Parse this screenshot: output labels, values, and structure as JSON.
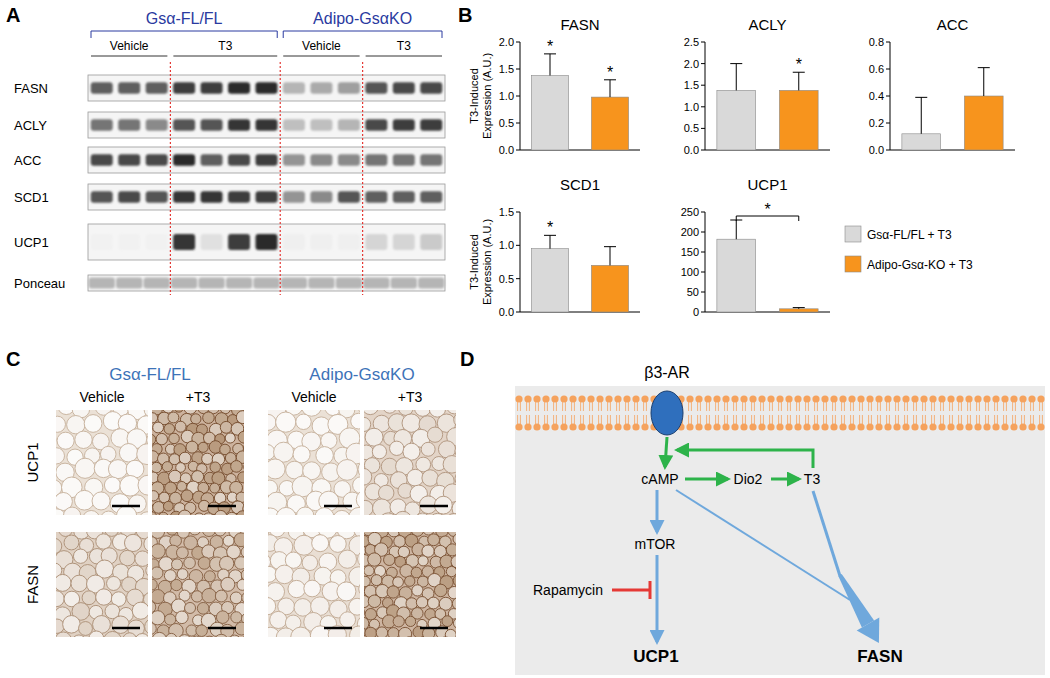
{
  "panel_labels": [
    "A",
    "B",
    "C",
    "D"
  ],
  "blot": {
    "groups": [
      {
        "label": "Gsα-FL/FL",
        "color": "#2a3aa0",
        "treatments": [
          {
            "label": "Vehicle",
            "lanes": 3
          },
          {
            "label": "T3",
            "lanes": 4
          }
        ]
      },
      {
        "label": "Adipo-GsαKO",
        "color": "#2a3aa0",
        "treatments": [
          {
            "label": "Vehicle",
            "lanes": 3
          },
          {
            "label": "T3",
            "lanes": 3
          }
        ]
      }
    ],
    "rows": [
      {
        "label": "FASN",
        "intensity": [
          0.7,
          0.7,
          0.7,
          0.85,
          0.85,
          0.95,
          0.95,
          0.3,
          0.35,
          0.4,
          0.75,
          0.8,
          0.8
        ]
      },
      {
        "label": "ACLY",
        "intensity": [
          0.6,
          0.6,
          0.5,
          0.75,
          0.75,
          0.9,
          0.9,
          0.25,
          0.25,
          0.3,
          0.8,
          0.85,
          0.85
        ]
      },
      {
        "label": "ACC",
        "intensity": [
          0.8,
          0.8,
          0.8,
          0.95,
          0.7,
          0.8,
          0.85,
          0.45,
          0.5,
          0.5,
          0.6,
          0.6,
          0.6
        ]
      },
      {
        "label": "SCD1",
        "intensity": [
          0.75,
          0.8,
          0.75,
          0.9,
          0.9,
          0.85,
          0.85,
          0.45,
          0.5,
          0.75,
          0.7,
          0.7,
          0.7
        ]
      },
      {
        "label": "UCP1",
        "intensity": [
          0.02,
          0.02,
          0.02,
          0.9,
          0.1,
          0.85,
          0.95,
          0.03,
          0.03,
          0.03,
          0.15,
          0.15,
          0.2
        ]
      },
      {
        "label": "Ponceau",
        "intensity": [
          0.3,
          0.3,
          0.3,
          0.3,
          0.3,
          0.3,
          0.3,
          0.3,
          0.3,
          0.3,
          0.3,
          0.3,
          0.3
        ]
      }
    ]
  },
  "chart_data": [
    {
      "type": "bar",
      "title": "FASN",
      "ylabel": "T3-Induced Expression (A.U.)",
      "categories": [
        null,
        null
      ],
      "values": [
        1.38,
        0.98
      ],
      "errors": [
        0.4,
        0.32
      ],
      "colors": [
        "#d9d9d9",
        "#f7941d"
      ],
      "significance": [
        "*",
        "*"
      ],
      "ylim": [
        0,
        2
      ],
      "yticks": [
        {
          "value": 0,
          "label": "0.0"
        },
        0.5,
        {
          "value": 1,
          "label": "1.0"
        },
        1.5,
        {
          "value": 2,
          "label": "2.0"
        }
      ],
      "tick_labels": "y"
    },
    {
      "type": "bar",
      "title": "ACLY",
      "categories": [
        null,
        null
      ],
      "values": [
        1.38,
        1.38
      ],
      "errors": [
        0.62,
        0.42
      ],
      "colors": [
        "#d9d9d9",
        "#f7941d"
      ],
      "significance": [
        null,
        "*"
      ],
      "ylim": [
        0,
        2.5
      ],
      "yticks": [
        {
          "value": 0,
          "label": "0.0"
        },
        0.5,
        {
          "value": 1,
          "label": "1.0"
        },
        1.5,
        {
          "value": 2,
          "label": "2.0"
        },
        2.5
      ],
      "tick_labels": "y"
    },
    {
      "type": "bar",
      "title": "ACC",
      "categories": [
        null,
        null
      ],
      "values": [
        0.12,
        0.4
      ],
      "errors": [
        0.27,
        0.21
      ],
      "colors": [
        "#d9d9d9",
        "#f7941d"
      ],
      "significance": [
        null,
        null
      ],
      "ylim": [
        0,
        0.8
      ],
      "yticks": [
        {
          "value": 0,
          "label": "0.0"
        },
        0.2,
        0.4,
        0.6,
        0.8
      ],
      "tick_labels": "y"
    },
    {
      "type": "bar",
      "title": "SCD1",
      "ylabel": "T3-Induced Expression (A.U.)",
      "categories": [
        null,
        null
      ],
      "values": [
        0.95,
        0.7
      ],
      "errors": [
        0.2,
        0.28
      ],
      "colors": [
        "#d9d9d9",
        "#f7941d"
      ],
      "significance": [
        "*",
        null
      ],
      "ylim": [
        0,
        1.5
      ],
      "yticks": [
        {
          "value": 0,
          "label": "0.0"
        },
        0.5,
        {
          "value": 1,
          "label": "1.0"
        },
        1.5
      ],
      "tick_labels": "y"
    },
    {
      "type": "bar",
      "title": "UCP1",
      "categories": [
        null,
        null
      ],
      "values": [
        182,
        8
      ],
      "errors": [
        48,
        3
      ],
      "colors": [
        "#d9d9d9",
        "#f7941d"
      ],
      "significance": [
        null,
        null
      ],
      "comparison": "*",
      "ylim": [
        0,
        250
      ],
      "yticks": [
        0,
        50,
        100,
        150,
        200,
        250
      ],
      "tick_labels": "y"
    }
  ],
  "chart_legend": [
    {
      "name": "Gsα-FL/FL + T3",
      "color": "#d9d9d9"
    },
    {
      "name": "Adipo-Gsα-KO + T3",
      "color": "#f7941d"
    }
  ],
  "histology": {
    "groups": [
      {
        "label": "Gsα-FL/FL",
        "color": "#3d73b8",
        "columns": [
          "Vehicle",
          "+T3"
        ]
      },
      {
        "label": "Adipo-GsαKO",
        "color": "#3d73b8",
        "columns": [
          "Vehicle",
          "+T3"
        ]
      }
    ],
    "rows": [
      {
        "label": "UCP1",
        "stain": [
          0.1,
          0.85,
          0.1,
          0.3
        ]
      },
      {
        "label": "FASN",
        "stain": [
          0.35,
          0.7,
          0.15,
          0.8
        ]
      }
    ]
  },
  "diagram": {
    "receptor": "β3-AR",
    "nodes": [
      "cAMP",
      "Dio2",
      "T3",
      "mTOR",
      "Rapamycin",
      "UCP1",
      "FASN"
    ]
  }
}
